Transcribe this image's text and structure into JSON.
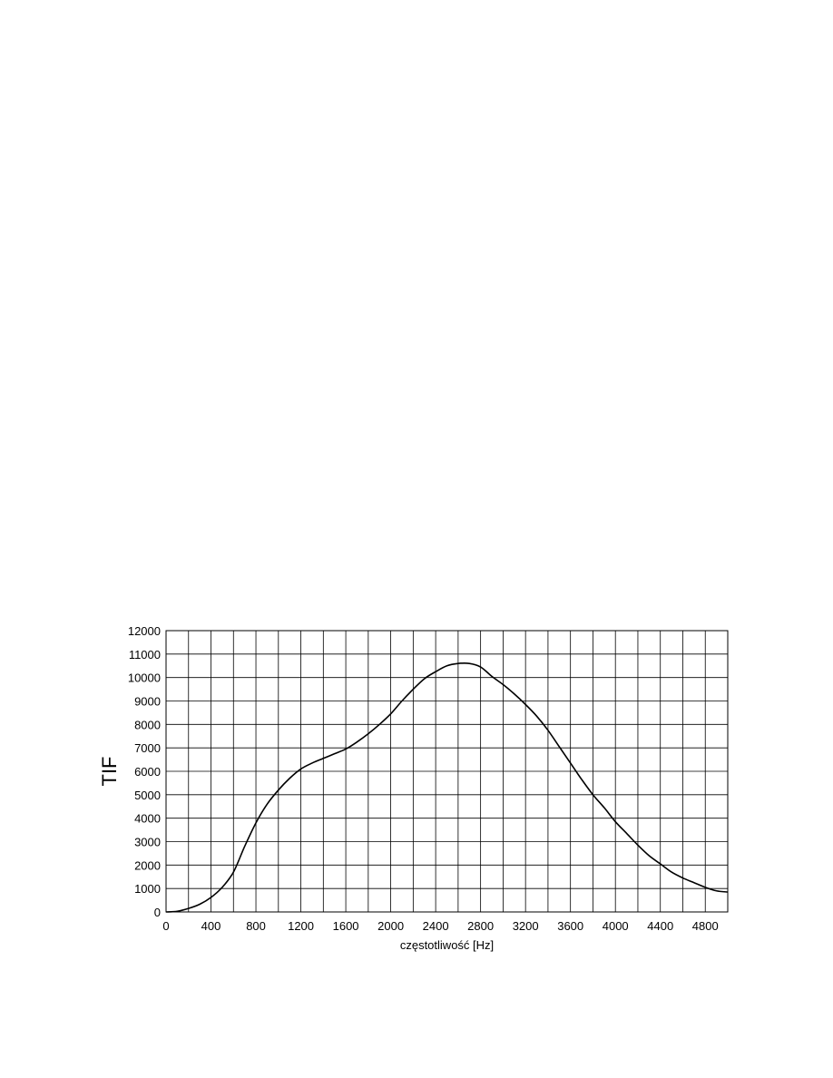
{
  "chart_data": {
    "type": "line",
    "title": "",
    "xlabel": "częstotliwość [Hz]",
    "ylabel": "TIF",
    "xlim": [
      0,
      5000
    ],
    "ylim": [
      0,
      12000
    ],
    "x_ticks": [
      0,
      400,
      800,
      1200,
      1600,
      2000,
      2400,
      2800,
      3200,
      3600,
      4000,
      4400,
      4800
    ],
    "y_ticks": [
      0,
      1000,
      2000,
      3000,
      4000,
      5000,
      6000,
      7000,
      8000,
      9000,
      10000,
      11000,
      12000
    ],
    "x_grid_step": 200,
    "y_grid_step": 1000,
    "grid": true,
    "legend": "none",
    "series": [
      {
        "x": [
          0,
          100,
          200,
          300,
          400,
          500,
          600,
          700,
          800,
          900,
          1000,
          1100,
          1200,
          1300,
          1400,
          1500,
          1600,
          1700,
          1800,
          1900,
          2000,
          2100,
          2200,
          2300,
          2400,
          2500,
          2600,
          2700,
          2800,
          2900,
          3000,
          3100,
          3200,
          3300,
          3400,
          3500,
          3600,
          3700,
          3800,
          3900,
          4000,
          4100,
          4200,
          4300,
          4400,
          4500,
          4600,
          4700,
          4800,
          4900,
          5000
        ],
        "y": [
          0,
          30,
          150,
          330,
          620,
          1050,
          1700,
          2800,
          3800,
          4600,
          5200,
          5700,
          6100,
          6350,
          6550,
          6750,
          6950,
          7250,
          7600,
          8000,
          8450,
          9000,
          9500,
          9950,
          10250,
          10500,
          10600,
          10600,
          10450,
          10050,
          9700,
          9300,
          8850,
          8350,
          7750,
          7050,
          6350,
          5650,
          5000,
          4450,
          3850,
          3350,
          2850,
          2400,
          2050,
          1700,
          1450,
          1250,
          1050,
          900,
          850
        ]
      }
    ]
  },
  "style": {
    "line_color": "#000000",
    "grid_color": "#000000",
    "background": "#ffffff"
  }
}
